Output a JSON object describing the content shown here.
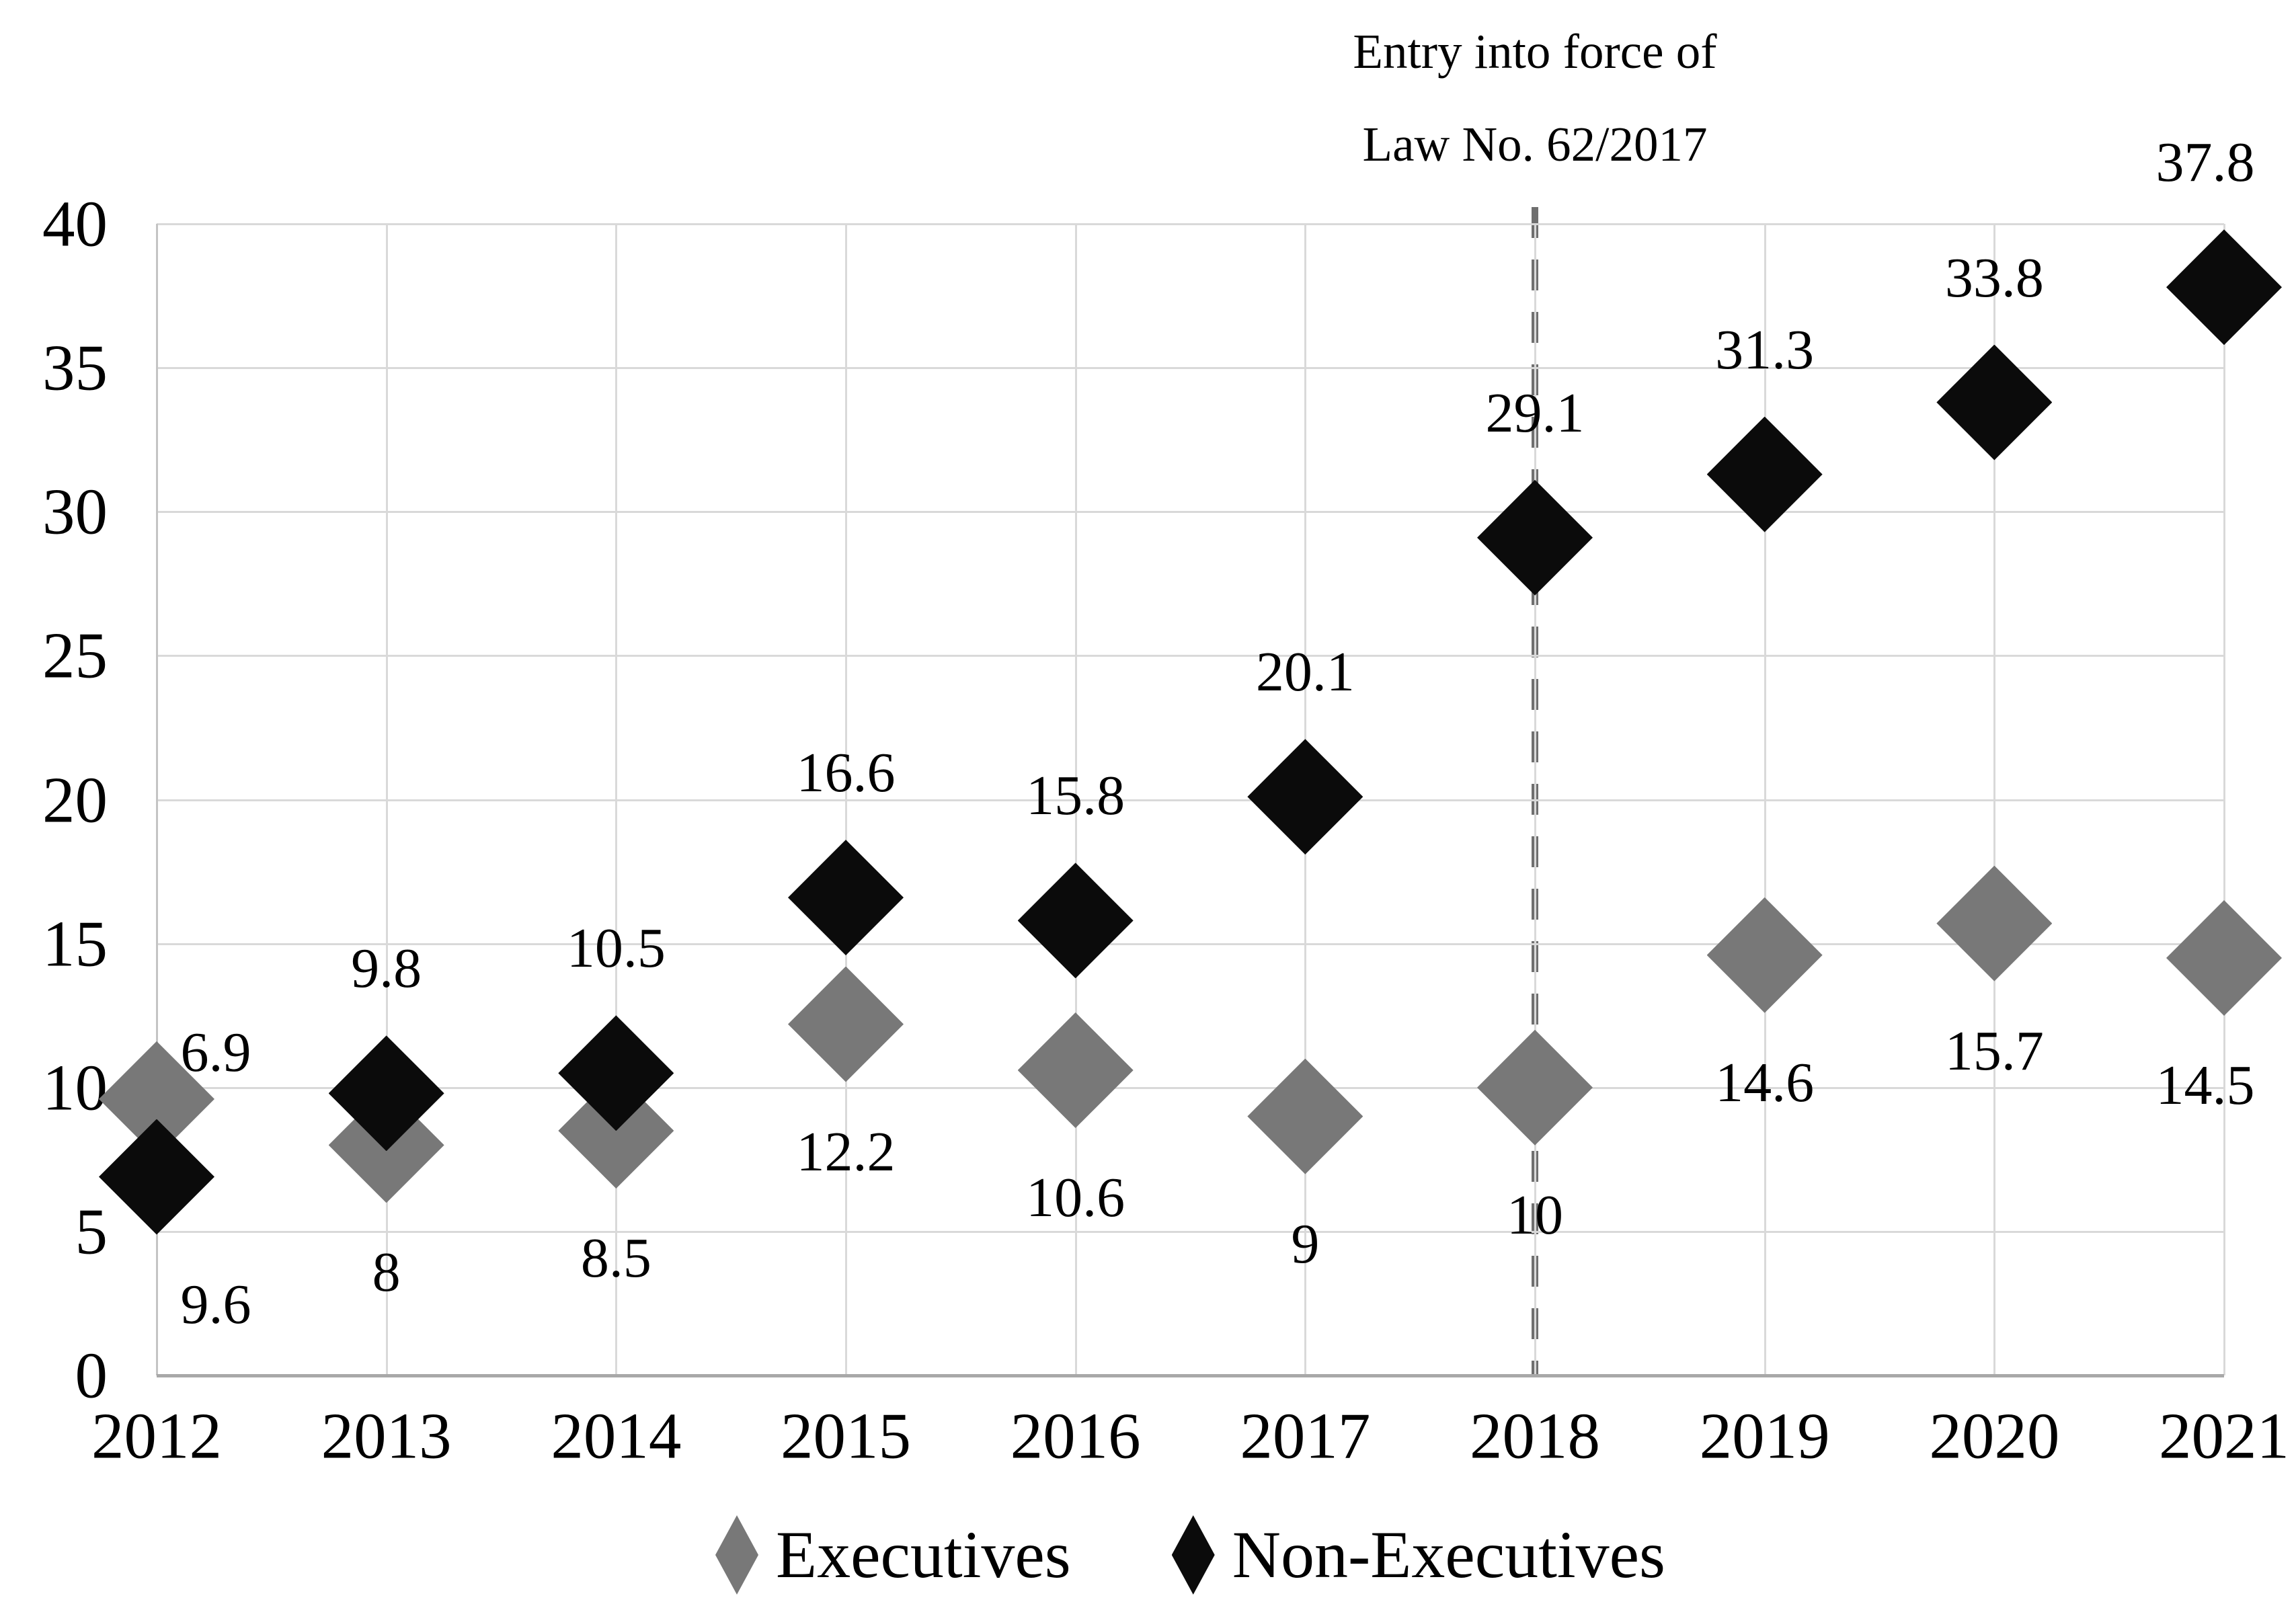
{
  "chart_data": {
    "type": "scatter",
    "title": "",
    "categories": [
      "2012",
      "2013",
      "2014",
      "2015",
      "2016",
      "2017",
      "2018",
      "2019",
      "2020",
      "2021"
    ],
    "series": [
      {
        "name": "Executives",
        "color": "#787878",
        "marker": "diamond",
        "values": [
          9.6,
          8,
          8.5,
          12.2,
          10.6,
          9,
          10,
          14.6,
          15.7,
          14.5
        ],
        "data_labels": [
          "9.6",
          "8",
          "8.5",
          "12.2",
          "10.6",
          "9",
          "10",
          "14.6",
          "15.7",
          "14.5"
        ],
        "label_position": "below"
      },
      {
        "name": "Non-Executives",
        "color": "#0b0b0b",
        "marker": "diamond",
        "values": [
          6.9,
          9.8,
          10.5,
          16.6,
          15.8,
          20.1,
          29.1,
          31.3,
          33.8,
          37.8
        ],
        "data_labels": [
          "6.9",
          "9.8",
          "10.5",
          "16.6",
          "15.8",
          "20.1",
          "29.1",
          "31.3",
          "33.8",
          "37.8"
        ],
        "label_position": "above"
      }
    ],
    "y_axis": {
      "min": 0,
      "max": 40,
      "step": 5,
      "tick_labels": [
        "0",
        "5",
        "10",
        "15",
        "20",
        "25",
        "30",
        "35",
        "40"
      ]
    },
    "x_axis": {
      "tick_labels": [
        "2012",
        "2013",
        "2014",
        "2015",
        "2016",
        "2017",
        "2018",
        "2019",
        "2020",
        "2021"
      ]
    },
    "grid": true,
    "legend_position": "bottom-center",
    "annotation": {
      "line1": "Entry into force of",
      "line2": "Law No. 62/2017",
      "attached_year": "2018",
      "divider_style": "dashed",
      "divider_color": "#6f6f6f"
    }
  }
}
